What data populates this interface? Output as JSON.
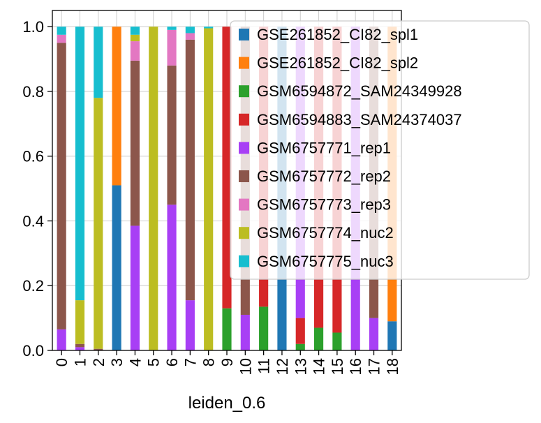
{
  "chart_data": {
    "type": "bar",
    "stacked": true,
    "xlabel": "leiden_0.6",
    "ylabel": "",
    "ylim": [
      0,
      1.05
    ],
    "yticks": [
      0.0,
      0.2,
      0.4,
      0.6,
      0.8,
      1.0
    ],
    "ytick_labels": [
      "0.0",
      "0.2",
      "0.4",
      "0.6",
      "0.8",
      "1.0"
    ],
    "grid": true,
    "legend_position": "upper-right, overlapping plot",
    "categories": [
      "0",
      "1",
      "2",
      "3",
      "4",
      "5",
      "6",
      "7",
      "8",
      "9",
      "10",
      "11",
      "12",
      "13",
      "14",
      "15",
      "16",
      "17",
      "18"
    ],
    "series": [
      {
        "name": "GSE261852_CI82_spl1",
        "color": "#1f77b4",
        "values": [
          0,
          0,
          0,
          0.51,
          0,
          0,
          0,
          0,
          0,
          0,
          0,
          0,
          1.0,
          0,
          0,
          0,
          0,
          0,
          0.09
        ]
      },
      {
        "name": "GSE261852_CI82_spl2",
        "color": "#ff7f0e",
        "values": [
          0,
          0,
          0,
          0.49,
          0,
          0,
          0,
          0,
          0,
          0,
          0,
          0,
          0,
          0,
          0,
          0,
          0,
          0,
          0.91
        ]
      },
      {
        "name": "GSM6594872_SAM24349928",
        "color": "#2ca02c",
        "values": [
          0,
          0,
          0,
          0,
          0,
          0,
          0,
          0,
          0,
          0.13,
          0,
          0.135,
          0,
          0.02,
          0.07,
          0.055,
          0,
          0,
          0
        ]
      },
      {
        "name": "GSM6594883_SAM24374037",
        "color": "#d62728",
        "values": [
          0,
          0,
          0,
          0,
          0,
          0,
          0,
          0,
          0,
          0.87,
          0,
          0.865,
          0,
          0.08,
          0.93,
          0.945,
          0,
          0,
          0
        ]
      },
      {
        "name": "GSM6757771_rep1",
        "color": "#a83ff5",
        "values": [
          0.065,
          0.01,
          0,
          0,
          0.385,
          0,
          0.45,
          0.155,
          0,
          0,
          0.11,
          0,
          0,
          0.9,
          0,
          0,
          1.0,
          0.1,
          0
        ]
      },
      {
        "name": "GSM6757772_rep2",
        "color": "#8c564b",
        "values": [
          0.885,
          0.01,
          0.005,
          0,
          0.51,
          0,
          0.43,
          0.805,
          0,
          0,
          0.89,
          0,
          0,
          0,
          0,
          0,
          0,
          0.9,
          0
        ]
      },
      {
        "name": "GSM6757773_rep3",
        "color": "#e377c2",
        "values": [
          0.025,
          0,
          0,
          0,
          0.06,
          0,
          0.11,
          0.02,
          0,
          0,
          0,
          0,
          0,
          0,
          0,
          0,
          0,
          0,
          0
        ]
      },
      {
        "name": "GSM6757774_nuc2",
        "color": "#bcbd22",
        "values": [
          0,
          0.135,
          0.775,
          0,
          0.02,
          1.0,
          0,
          0,
          0.995,
          0,
          0,
          0,
          0,
          0,
          0,
          0,
          0,
          0,
          0
        ]
      },
      {
        "name": "GSM6757775_nuc3",
        "color": "#17becf",
        "values": [
          0.025,
          0.845,
          0.22,
          0,
          0.025,
          0,
          0.01,
          0.02,
          0.005,
          0,
          0,
          0,
          0,
          0,
          0,
          0,
          0,
          0,
          0
        ]
      }
    ]
  }
}
